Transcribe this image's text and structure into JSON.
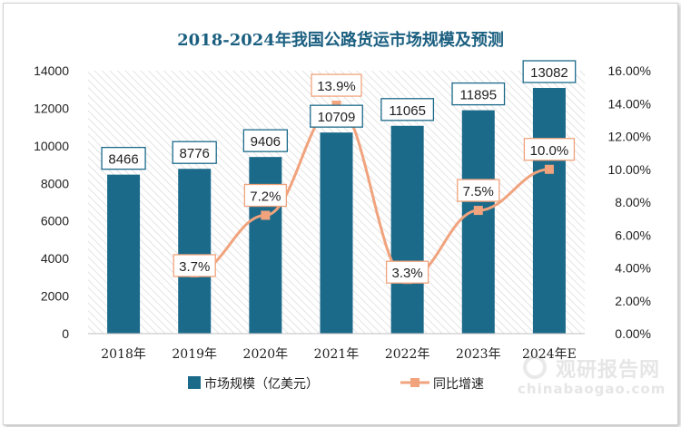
{
  "chart_data": {
    "type": "bar",
    "title": "2018-2024年我国公路货运市场规模及预测",
    "categories": [
      "2018年",
      "2019年",
      "2020年",
      "2021年",
      "2022年",
      "2023年",
      "2024年E"
    ],
    "series": [
      {
        "name": "市场规模（亿美元）",
        "type": "bar",
        "axis": "left",
        "values": [
          8466,
          8776,
          9406,
          10709,
          11065,
          11895,
          13082
        ],
        "labels": [
          "8466",
          "8776",
          "9406",
          "10709",
          "11065",
          "11895",
          "13082"
        ]
      },
      {
        "name": "同比增速",
        "type": "line",
        "axis": "right",
        "values": [
          null,
          3.7,
          7.2,
          13.9,
          3.3,
          7.5,
          10.0
        ],
        "labels": [
          null,
          "3.7%",
          "7.2%",
          "13.9%",
          "3.3%",
          "7.5%",
          "10.0%"
        ]
      }
    ],
    "ylim_left": [
      0,
      14000
    ],
    "yticks_left": [
      "0",
      "2000",
      "4000",
      "6000",
      "8000",
      "10000",
      "12000",
      "14000"
    ],
    "ylim_right": [
      0,
      16
    ],
    "yticks_right": [
      "0.00%",
      "2.00%",
      "4.00%",
      "6.00%",
      "8.00%",
      "10.00%",
      "12.00%",
      "14.00%",
      "16.00%"
    ],
    "legend_position": "bottom",
    "colors": {
      "bar": "#1b6a8a",
      "line": "#f0a37d",
      "title": "#1a5f80"
    },
    "watermark": {
      "main": "观研报告网",
      "sub": "chinabaogao.com"
    }
  }
}
